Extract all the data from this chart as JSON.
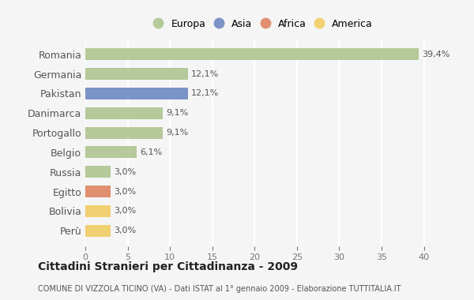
{
  "countries": [
    "Romania",
    "Germania",
    "Pakistan",
    "Danimarca",
    "Portogallo",
    "Belgio",
    "Russia",
    "Egitto",
    "Bolivia",
    "Perù"
  ],
  "values": [
    39.4,
    12.1,
    12.1,
    9.1,
    9.1,
    6.1,
    3.0,
    3.0,
    3.0,
    3.0
  ],
  "labels": [
    "39,4%",
    "12,1%",
    "12,1%",
    "9,1%",
    "9,1%",
    "6,1%",
    "3,0%",
    "3,0%",
    "3,0%",
    "3,0%"
  ],
  "colors": [
    "#b5c99a",
    "#b5c99a",
    "#7b93c7",
    "#b5c99a",
    "#b5c99a",
    "#b5c99a",
    "#b5c99a",
    "#e09070",
    "#f0d070",
    "#f0d070"
  ],
  "legend_labels": [
    "Europa",
    "Asia",
    "Africa",
    "America"
  ],
  "legend_colors": [
    "#b5c99a",
    "#7b93c7",
    "#e09070",
    "#f0d070"
  ],
  "title": "Cittadini Stranieri per Cittadinanza - 2009",
  "subtitle": "COMUNE DI VIZZOLA TICINO (VA) - Dati ISTAT al 1° gennaio 2009 - Elaborazione TUTTITALIA.IT",
  "xlim": [
    0,
    42
  ],
  "xticks": [
    0,
    5,
    10,
    15,
    20,
    25,
    30,
    35,
    40
  ],
  "background_color": "#f5f5f5",
  "grid_color": "#ffffff",
  "bar_height": 0.6
}
